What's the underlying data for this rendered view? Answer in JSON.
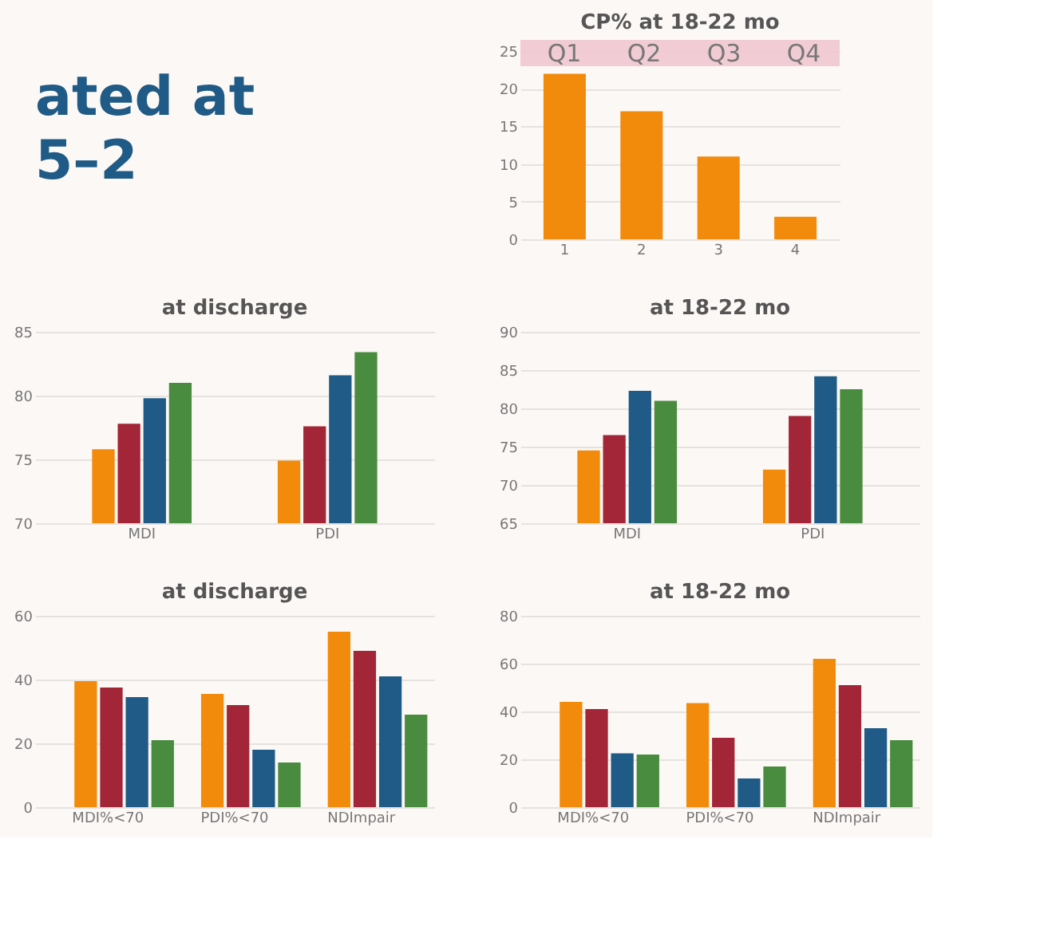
{
  "chart_data": [
    {
      "type": "other",
      "annotations": [
        "ated at",
        "5–2"
      ]
    },
    {
      "type": "bar",
      "title": "CP% at 18-22 mo",
      "categories": [
        "1",
        "2",
        "3",
        "4"
      ],
      "values": [
        22,
        17,
        11,
        3
      ],
      "color": "#f28a0c",
      "ylim": [
        0,
        26.5
      ],
      "yticks": [
        0,
        5,
        10,
        15,
        20,
        25
      ],
      "grid": "y",
      "bands": [
        {
          "axis": "y",
          "from": 23,
          "to": 26.5,
          "color": "#f1c6d0"
        }
      ],
      "annotations": [
        "Q1",
        "Q2",
        "Q3",
        "Q4"
      ]
    },
    {
      "type": "bar",
      "title": "at discharge",
      "categories": [
        "MDI",
        "PDI"
      ],
      "ylim": [
        70,
        85
      ],
      "yticks": [
        70,
        75,
        80,
        85
      ],
      "grid": "y",
      "series": [
        {
          "color": "#f28a0c",
          "values": [
            75.8,
            74.9
          ]
        },
        {
          "color": "#a32638",
          "values": [
            77.8,
            77.6
          ]
        },
        {
          "color": "#1f5b86",
          "values": [
            79.8,
            81.6
          ]
        },
        {
          "color": "#4a8c3f",
          "values": [
            81,
            83.4
          ]
        }
      ]
    },
    {
      "type": "bar",
      "title": "at 18-22 mo",
      "categories": [
        "MDI",
        "PDI"
      ],
      "ylim": [
        65,
        90
      ],
      "yticks": [
        65,
        70,
        75,
        80,
        85,
        90
      ],
      "grid": "y",
      "series": [
        {
          "color": "#f28a0c",
          "values": [
            74.5,
            72
          ]
        },
        {
          "color": "#a32638",
          "values": [
            76.5,
            79
          ]
        },
        {
          "color": "#1f5b86",
          "values": [
            82.3,
            84.2
          ]
        },
        {
          "color": "#4a8c3f",
          "values": [
            81,
            82.5
          ]
        }
      ]
    },
    {
      "type": "bar",
      "title": "at discharge",
      "categories": [
        "MDI%<70",
        "PDI%<70",
        "NDImpair"
      ],
      "ylim": [
        0,
        60
      ],
      "yticks": [
        0,
        20,
        40,
        60
      ],
      "grid": "y",
      "series": [
        {
          "color": "#f28a0c",
          "values": [
            39.5,
            35.5,
            55
          ]
        },
        {
          "color": "#a32638",
          "values": [
            37.5,
            32,
            49
          ]
        },
        {
          "color": "#1f5b86",
          "values": [
            34.5,
            18,
            41
          ]
        },
        {
          "color": "#4a8c3f",
          "values": [
            21,
            14,
            29
          ]
        }
      ]
    },
    {
      "type": "bar",
      "title": "at 18-22 mo",
      "categories": [
        "MDI%<70",
        "PDI%<70",
        "NDImpair"
      ],
      "ylim": [
        0,
        80
      ],
      "yticks": [
        0,
        20,
        40,
        60,
        80
      ],
      "grid": "y",
      "series": [
        {
          "color": "#f28a0c",
          "values": [
            44,
            43.5,
            62
          ]
        },
        {
          "color": "#a32638",
          "values": [
            41,
            29,
            51
          ]
        },
        {
          "color": "#1f5b86",
          "values": [
            22.5,
            12,
            33
          ]
        },
        {
          "color": "#4a8c3f",
          "values": [
            22,
            17,
            28
          ]
        }
      ]
    }
  ]
}
